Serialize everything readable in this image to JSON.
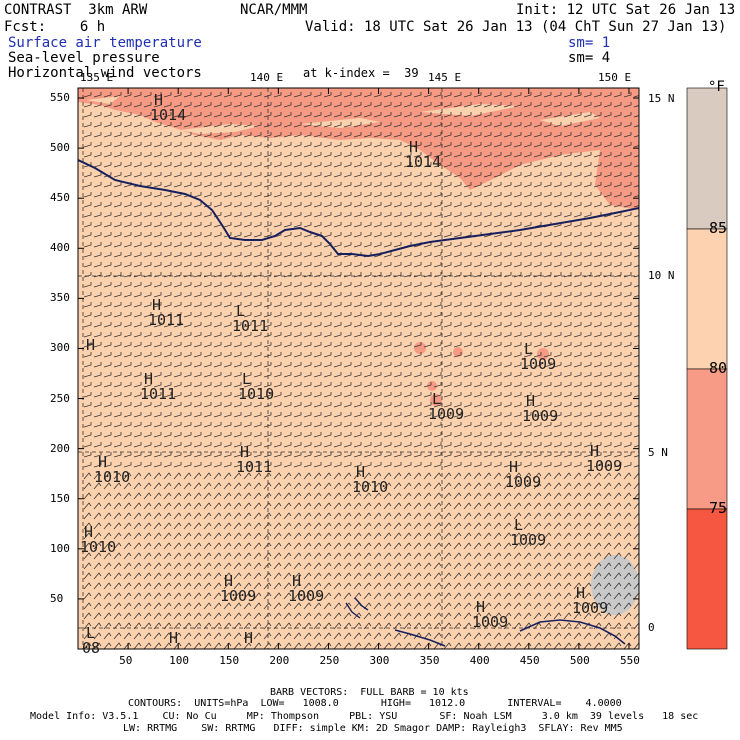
{
  "header": {
    "model": "CONTRAST  3km ARW",
    "center": "NCAR/MMM",
    "init": "Init: 12 UTC Sat 26 Jan 13",
    "fcst": "Fcst:    6 h",
    "valid": "Valid: 18 UTC Sat 26 Jan 13 (04 ChT Sun 27 Jan 13)",
    "field1": "Surface air temperature",
    "field1_sm": "sm= 1",
    "field2": "Sea-level pressure",
    "field2_sm": "sm= 4",
    "field3": "Horizontal wind vectors",
    "k_index": "at k-index =  39"
  },
  "map": {
    "lon_labels": [
      "135 E",
      "140 E",
      "145 E",
      "150 E"
    ],
    "lat_labels": [
      "15 N",
      "10 N",
      "5 N",
      "0"
    ],
    "y_ticks": [
      "550",
      "500",
      "450",
      "400",
      "350",
      "300",
      "250",
      "200",
      "150",
      "100",
      "50"
    ],
    "x_ticks": [
      "50",
      "100",
      "150",
      "200",
      "250",
      "300",
      "350",
      "400",
      "450",
      "500",
      "550"
    ],
    "pressure_labels": [
      {
        "sym": "H",
        "val": "1014"
      },
      {
        "sym": "H",
        "val": "1014"
      },
      {
        "sym": "H",
        "val": "1011"
      },
      {
        "sym": "L",
        "val": "1011"
      },
      {
        "sym": "H",
        "val": ""
      },
      {
        "sym": "H",
        "val": "1011"
      },
      {
        "sym": "L",
        "val": "1010"
      },
      {
        "sym": "L",
        "val": "1009"
      },
      {
        "sym": "L",
        "val": "1009"
      },
      {
        "sym": "H",
        "val": "1009"
      },
      {
        "sym": "H",
        "val": "1010"
      },
      {
        "sym": "H",
        "val": "1011"
      },
      {
        "sym": "H",
        "val": "1010"
      },
      {
        "sym": "H",
        "val": "1009"
      },
      {
        "sym": "H",
        "val": "1009"
      },
      {
        "sym": "H",
        "val": "1010"
      },
      {
        "sym": "L",
        "val": "1009"
      },
      {
        "sym": "H",
        "val": "1009"
      },
      {
        "sym": "H",
        "val": "1009"
      },
      {
        "sym": "H",
        "val": "1009"
      },
      {
        "sym": "H",
        "val": "1009"
      },
      {
        "sym": "L",
        "val": "08"
      },
      {
        "sym": "H",
        "val": ""
      },
      {
        "sym": "H",
        "val": ""
      }
    ]
  },
  "colorbar": {
    "unit": "°F",
    "labels": [
      "85",
      "80",
      "75"
    ],
    "colors": [
      "#d9cbbf",
      "#fdd2b0",
      "#f89b86",
      "#f55740"
    ]
  },
  "colors": {
    "field_light": "#fcd2ae",
    "field_warm": "#f79a84",
    "coast": "#17205e",
    "grey_patch": "#c9c9c9"
  },
  "footer": {
    "barb": "BARB VECTORS:  FULL BARB = 10 kts",
    "contours": "CONTOURS:  UNITS=hPa  LOW=   1008.0       HIGH=   1012.0       INTERVAL=    4.0000",
    "model_info_1": "Model Info: V3.5.1    CU: No Cu     MP: Thompson     PBL: YSU       SF: Noah LSM     3.0 km  39 levels   18 sec",
    "model_info_2": "LW: RRTMG    SW: RRTMG   DIFF: simple KM: 2D Smagor DAMP: Rayleigh3  SFLAY: Rev MM5"
  }
}
